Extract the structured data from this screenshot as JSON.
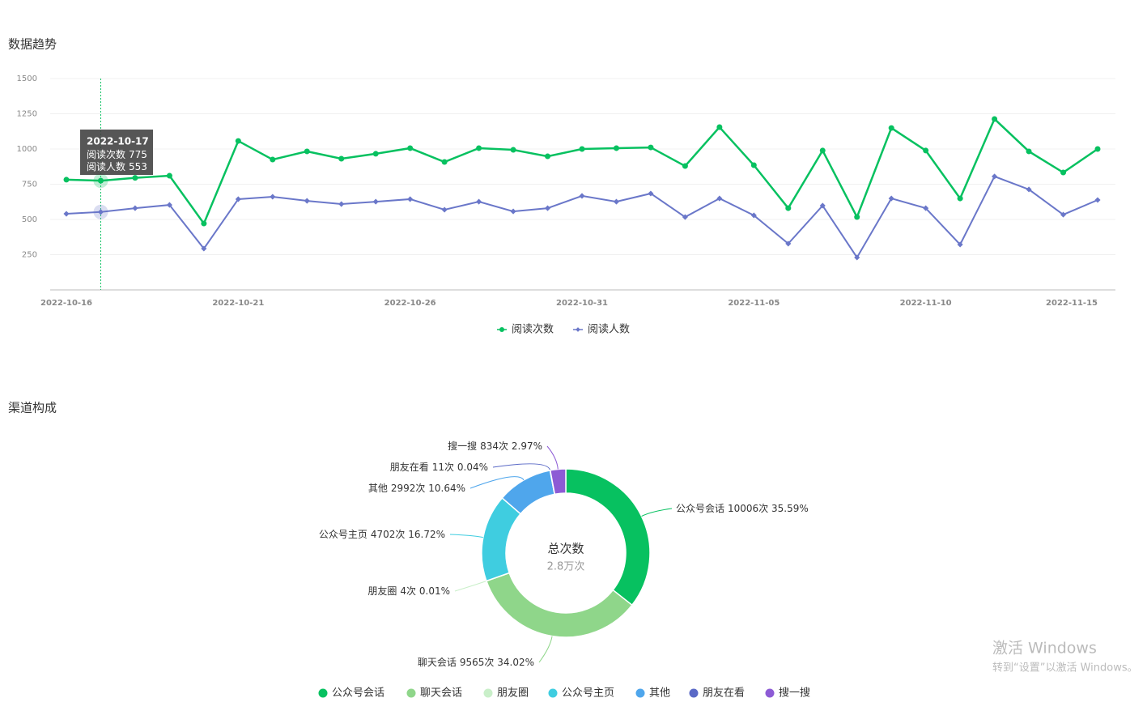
{
  "page": {
    "section1": "数据趋势",
    "section2": "渠道构成",
    "watermark_title": "激活 Windows",
    "watermark_text": "转到“设置”以激活 Windows。"
  },
  "chart_data": [
    {
      "type": "line",
      "categories": [
        "2022-10-16",
        null,
        null,
        null,
        null,
        "2022-10-21",
        null,
        null,
        null,
        null,
        "2022-10-26",
        null,
        null,
        null,
        null,
        "2022-10-31",
        null,
        null,
        null,
        null,
        "2022-11-05",
        null,
        null,
        null,
        null,
        "2022-11-10",
        null,
        null,
        null,
        null,
        "2022-11-15"
      ],
      "series": [
        {
          "name": "阅读次数",
          "color": "#07c160",
          "values": [
            782,
            775,
            795,
            810,
            471,
            1057,
            925,
            983,
            931,
            966,
            1006,
            908,
            1006,
            994,
            948,
            1000,
            1006,
            1011,
            879,
            1155,
            885,
            580,
            989,
            517,
            1149,
            989,
            649,
            1213,
            983,
            833,
            1000
          ]
        },
        {
          "name": "阅读人数",
          "color": "#6a77c9",
          "values": [
            540,
            553,
            580,
            603,
            293,
            644,
            661,
            632,
            609,
            626,
            644,
            569,
            626,
            557,
            580,
            667,
            626,
            684,
            517,
            649,
            529,
            328,
            598,
            230,
            649,
            580,
            322,
            805,
            713,
            534,
            638
          ]
        }
      ],
      "ylim": [
        0,
        1500
      ],
      "yticks": [
        250,
        500,
        750,
        1000,
        1250,
        1500
      ],
      "grid": true,
      "legend": "bottom",
      "tooltip": {
        "title": "2022-10-17",
        "index": 1
      }
    },
    {
      "type": "donut",
      "center_title": "总次数",
      "center_value": "2.8万次",
      "categories": [
        "公众号会话",
        "聊天会话",
        "朋友圈",
        "公众号主页",
        "其他",
        "朋友在看",
        "搜一搜"
      ],
      "values": [
        10006,
        9565,
        4,
        4702,
        2992,
        11,
        834
      ],
      "value_labels": [
        "10006次 35.59%",
        "9565次 34.02%",
        "4次 0.01%",
        "4702次 16.72%",
        "2992次 10.64%",
        "11次 0.04%",
        "834次 2.97%"
      ],
      "colors": [
        "#07c160",
        "#8fd68a",
        "#c9efc9",
        "#3fcde0",
        "#4fa6ec",
        "#5a69c6",
        "#8d5bd5"
      ],
      "legend": "bottom"
    }
  ]
}
